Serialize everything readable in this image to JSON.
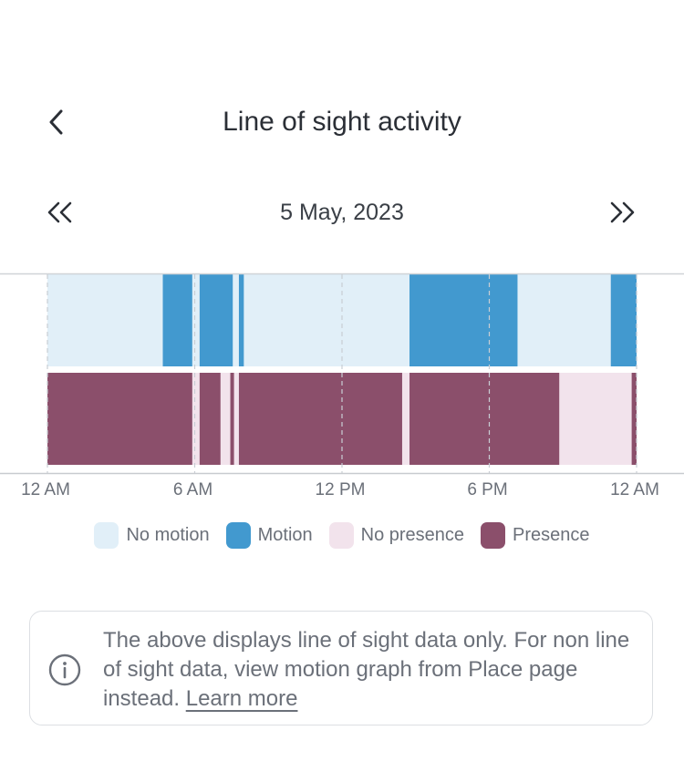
{
  "header": {
    "title": "Line of sight activity"
  },
  "date_nav": {
    "date": "5 May, 2023"
  },
  "legend": [
    {
      "label": "No motion",
      "color": "#e1eff8"
    },
    {
      "label": "Motion",
      "color": "#4299cf"
    },
    {
      "label": "No presence",
      "color": "#f2e3ec"
    },
    {
      "label": "Presence",
      "color": "#8b4f6b"
    }
  ],
  "info": {
    "text": "The above displays line of sight data only. For non line of sight data, view motion graph from Place page instead.",
    "link": "Learn more"
  },
  "chart_data": {
    "type": "timeline",
    "x_range": [
      0,
      24
    ],
    "x_ticks": [
      {
        "value": 0,
        "label": "12 AM"
      },
      {
        "value": 6,
        "label": "6 AM"
      },
      {
        "value": 12,
        "label": "12 PM"
      },
      {
        "value": 18,
        "label": "6 PM"
      },
      {
        "value": 24,
        "label": "12 AM"
      }
    ],
    "rows": [
      {
        "background_state": "No motion",
        "segments": [
          {
            "state": "Motion",
            "start": 4.7,
            "end": 5.9
          },
          {
            "state": "Motion",
            "start": 6.2,
            "end": 7.55
          },
          {
            "state": "Motion",
            "start": 7.8,
            "end": 8.0
          },
          {
            "state": "Motion",
            "start": 14.75,
            "end": 19.15
          },
          {
            "state": "Motion",
            "start": 22.95,
            "end": 24.0
          }
        ]
      },
      {
        "background_state": "No presence",
        "segments": [
          {
            "state": "Presence",
            "start": 0.0,
            "end": 5.9
          },
          {
            "state": "Presence",
            "start": 6.2,
            "end": 7.05
          },
          {
            "state": "Presence",
            "start": 7.45,
            "end": 7.6
          },
          {
            "state": "Presence",
            "start": 7.8,
            "end": 14.45
          },
          {
            "state": "Presence",
            "start": 14.75,
            "end": 20.85
          },
          {
            "state": "Presence",
            "start": 23.8,
            "end": 24.0
          }
        ]
      }
    ]
  }
}
